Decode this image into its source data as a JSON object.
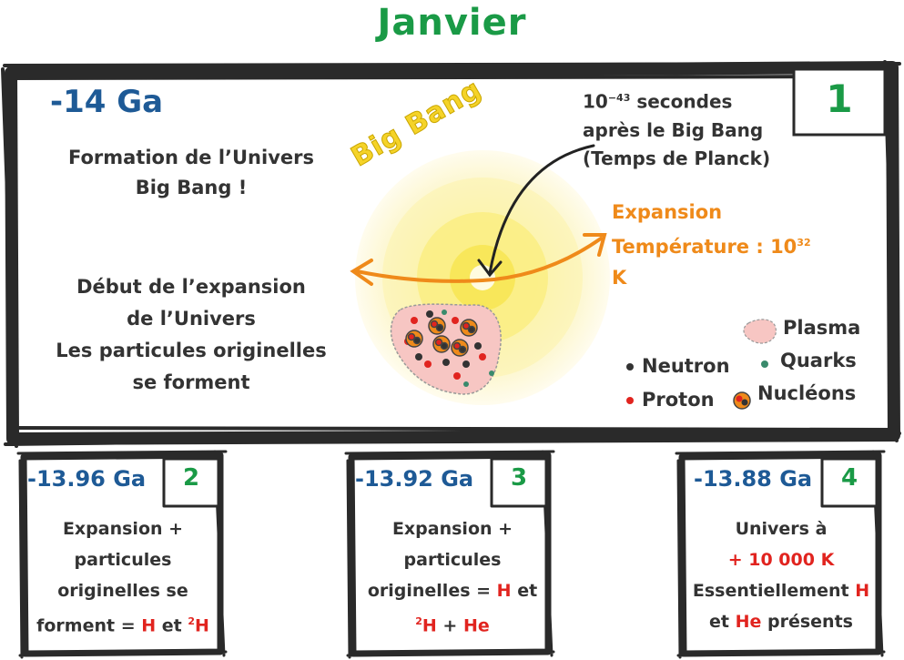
{
  "title": "Janvier",
  "main_panel": {
    "era": "-14 Ga",
    "day": "1",
    "text_formation": [
      "Formation de l’Univers",
      "Big Bang !"
    ],
    "text_debut": [
      "Début de l’expansion",
      "de l’Univers",
      "Les particules originelles",
      "se forment"
    ],
    "big_bang_label": "Big Bang",
    "planck_line1_base": "10",
    "planck_line1_exp": "−43",
    "planck_line1_rest": " secondes",
    "planck_line2": "après le Big Bang",
    "planck_line3": "(Temps de Planck)",
    "expansion_label": "Expansion",
    "temperature_prefix": "Température : 10",
    "temperature_exp": "32",
    "temperature_unit": " K",
    "legend": {
      "plasma": "Plasma",
      "quarks": "Quarks",
      "neutron": "Neutron",
      "proton": "Proton",
      "nucleons": "Nucléons"
    }
  },
  "panels": [
    {
      "era": "-13.96 Ga",
      "day": "2",
      "line1": "Expansion +",
      "line2": "particules",
      "line3": "originelles se",
      "line4_prefix": "forment = ",
      "line4_h": "H",
      "line4_and": " et ",
      "line4_sup": "2",
      "line4_h2": "H"
    },
    {
      "era": "-13.92 Ga",
      "day": "3",
      "line1": "Expansion +",
      "line2": "particules",
      "line3_prefix": "originelles = ",
      "line3_h": "H",
      "line3_and": " et",
      "line4_sup": "2",
      "line4_h": "H",
      "line4_plus": " + ",
      "line4_he": "He"
    },
    {
      "era": "-13.88 Ga",
      "day": "4",
      "line1": "Univers à",
      "line2": "+ 10 000 K",
      "line3_prefix": "Essentiellement ",
      "line3_h": "H",
      "line4_prefix": "et ",
      "line4_he": "He",
      "line4_suffix": " présents"
    }
  ],
  "colors": {
    "title_green": "#1a9a46",
    "era_blue": "#1e5a96",
    "accent_orange": "#ef8a1a",
    "accent_red": "#e1241f",
    "bigbang_yellow": "#f5d328"
  }
}
